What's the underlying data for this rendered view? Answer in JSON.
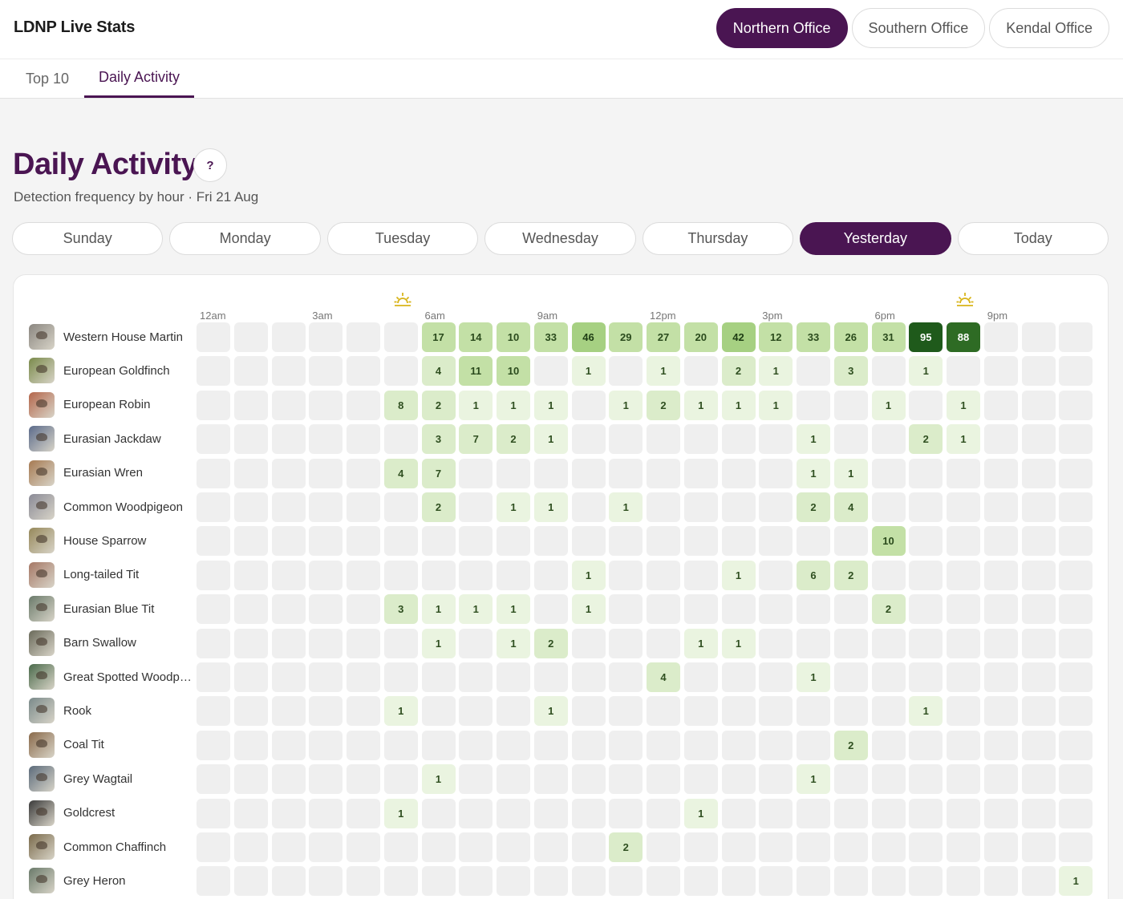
{
  "app": {
    "title": "LDNP Live Stats"
  },
  "offices": [
    {
      "label": "Northern Office",
      "active": true
    },
    {
      "label": "Southern Office",
      "active": false
    },
    {
      "label": "Kendal Office",
      "active": false
    }
  ],
  "tabs": [
    {
      "label": "Top 10",
      "active": false
    },
    {
      "label": "Daily Activity",
      "active": true
    }
  ],
  "page": {
    "title": "Daily Activity",
    "help_label": "?",
    "subtitle": "Detection frequency by hour · Fri 21 Aug"
  },
  "days": [
    {
      "label": "Sunday",
      "active": false
    },
    {
      "label": "Monday",
      "active": false
    },
    {
      "label": "Tuesday",
      "active": false
    },
    {
      "label": "Wednesday",
      "active": false
    },
    {
      "label": "Thursday",
      "active": false
    },
    {
      "label": "Yesterday",
      "active": true
    },
    {
      "label": "Today",
      "active": false
    }
  ],
  "hour_labels": [
    {
      "hour": 0,
      "label": "12am"
    },
    {
      "hour": 3,
      "label": "3am"
    },
    {
      "hour": 6,
      "label": "6am"
    },
    {
      "hour": 9,
      "label": "9am"
    },
    {
      "hour": 12,
      "label": "12pm"
    },
    {
      "hour": 15,
      "label": "3pm"
    },
    {
      "hour": 18,
      "label": "6pm"
    },
    {
      "hour": 21,
      "label": "9pm"
    }
  ],
  "sun_markers": [
    {
      "hour": 5.5,
      "icon": "sunrise-icon",
      "color": "#d8b41a"
    },
    {
      "hour": 20.5,
      "icon": "sunset-icon",
      "color": "#d8b41a"
    }
  ],
  "colors": {
    "accent": "#4a1552",
    "empty_cell": "#efefef",
    "scale": [
      "#eaf4e0",
      "#dbecca",
      "#c3e0a6",
      "#a6d082",
      "#2e6b24",
      "#1f5a1b"
    ]
  },
  "birds": [
    {
      "name": "Western House Martin",
      "color": "#8a8680",
      "counts": [
        null,
        null,
        null,
        null,
        null,
        null,
        17,
        14,
        10,
        33,
        46,
        29,
        27,
        20,
        42,
        12,
        33,
        26,
        31,
        95,
        88,
        null,
        null,
        null
      ]
    },
    {
      "name": "European Goldfinch",
      "color": "#7a8a4a",
      "counts": [
        null,
        null,
        null,
        null,
        null,
        null,
        4,
        11,
        10,
        null,
        1,
        null,
        1,
        null,
        2,
        1,
        null,
        3,
        null,
        1,
        null,
        null,
        null,
        null
      ]
    },
    {
      "name": "European Robin",
      "color": "#b4664a",
      "counts": [
        null,
        null,
        null,
        null,
        null,
        8,
        2,
        1,
        1,
        1,
        null,
        1,
        2,
        1,
        1,
        1,
        null,
        null,
        1,
        null,
        1,
        null,
        null,
        null
      ]
    },
    {
      "name": "Eurasian Jackdaw",
      "color": "#5a6a8a",
      "counts": [
        null,
        null,
        null,
        null,
        null,
        null,
        3,
        7,
        2,
        1,
        null,
        null,
        null,
        null,
        null,
        null,
        1,
        null,
        null,
        2,
        1,
        null,
        null,
        null
      ]
    },
    {
      "name": "Eurasian Wren",
      "color": "#a67a52",
      "counts": [
        null,
        null,
        null,
        null,
        null,
        4,
        7,
        null,
        null,
        null,
        null,
        null,
        null,
        null,
        null,
        null,
        1,
        1,
        null,
        null,
        null,
        null,
        null,
        null
      ]
    },
    {
      "name": "Common Woodpigeon",
      "color": "#8a8a96",
      "counts": [
        null,
        null,
        null,
        null,
        null,
        null,
        2,
        null,
        1,
        1,
        null,
        1,
        null,
        null,
        null,
        null,
        2,
        4,
        null,
        null,
        null,
        null,
        null,
        null
      ]
    },
    {
      "name": "House Sparrow",
      "color": "#96885a",
      "counts": [
        null,
        null,
        null,
        null,
        null,
        null,
        null,
        null,
        null,
        null,
        null,
        null,
        null,
        null,
        null,
        null,
        null,
        null,
        10,
        null,
        null,
        null,
        null,
        null
      ]
    },
    {
      "name": "Long-tailed Tit",
      "color": "#a67866",
      "counts": [
        null,
        null,
        null,
        null,
        null,
        null,
        null,
        null,
        null,
        null,
        1,
        null,
        null,
        null,
        1,
        null,
        6,
        2,
        null,
        null,
        null,
        null,
        null,
        null
      ]
    },
    {
      "name": "Eurasian Blue Tit",
      "color": "#6a7a6a",
      "counts": [
        null,
        null,
        null,
        null,
        null,
        3,
        1,
        1,
        1,
        null,
        1,
        null,
        null,
        null,
        null,
        null,
        null,
        null,
        2,
        null,
        null,
        null,
        null,
        null
      ]
    },
    {
      "name": "Barn Swallow",
      "color": "#6a6a5a",
      "counts": [
        null,
        null,
        null,
        null,
        null,
        null,
        1,
        null,
        1,
        2,
        null,
        null,
        null,
        1,
        1,
        null,
        null,
        null,
        null,
        null,
        null,
        null,
        null,
        null
      ]
    },
    {
      "name": "Great Spotted Woodpecker",
      "color": "#4a6a4a",
      "counts": [
        null,
        null,
        null,
        null,
        null,
        null,
        null,
        null,
        null,
        null,
        null,
        null,
        4,
        null,
        null,
        null,
        1,
        null,
        null,
        null,
        null,
        null,
        null,
        null
      ]
    },
    {
      "name": "Rook",
      "color": "#7a8a8a",
      "counts": [
        null,
        null,
        null,
        null,
        null,
        1,
        null,
        null,
        null,
        1,
        null,
        null,
        null,
        null,
        null,
        null,
        null,
        null,
        null,
        1,
        null,
        null,
        null,
        null
      ]
    },
    {
      "name": "Coal Tit",
      "color": "#8a6a4a",
      "counts": [
        null,
        null,
        null,
        null,
        null,
        null,
        null,
        null,
        null,
        null,
        null,
        null,
        null,
        null,
        null,
        null,
        null,
        2,
        null,
        null,
        null,
        null,
        null,
        null
      ]
    },
    {
      "name": "Grey Wagtail",
      "color": "#5a6a7a",
      "counts": [
        null,
        null,
        null,
        null,
        null,
        null,
        1,
        null,
        null,
        null,
        null,
        null,
        null,
        null,
        null,
        null,
        1,
        null,
        null,
        null,
        null,
        null,
        null,
        null
      ]
    },
    {
      "name": "Goldcrest",
      "color": "#3a3a3a",
      "counts": [
        null,
        null,
        null,
        null,
        null,
        1,
        null,
        null,
        null,
        null,
        null,
        null,
        null,
        1,
        null,
        null,
        null,
        null,
        null,
        null,
        null,
        null,
        null,
        null
      ]
    },
    {
      "name": "Common Chaffinch",
      "color": "#7a6a4a",
      "counts": [
        null,
        null,
        null,
        null,
        null,
        null,
        null,
        null,
        null,
        null,
        null,
        2,
        null,
        null,
        null,
        null,
        null,
        null,
        null,
        null,
        null,
        null,
        null,
        null
      ]
    },
    {
      "name": "Grey Heron",
      "color": "#6a7a6a",
      "counts": [
        null,
        null,
        null,
        null,
        null,
        null,
        null,
        null,
        null,
        null,
        null,
        null,
        null,
        null,
        null,
        null,
        null,
        null,
        null,
        null,
        null,
        null,
        null,
        1
      ]
    }
  ]
}
